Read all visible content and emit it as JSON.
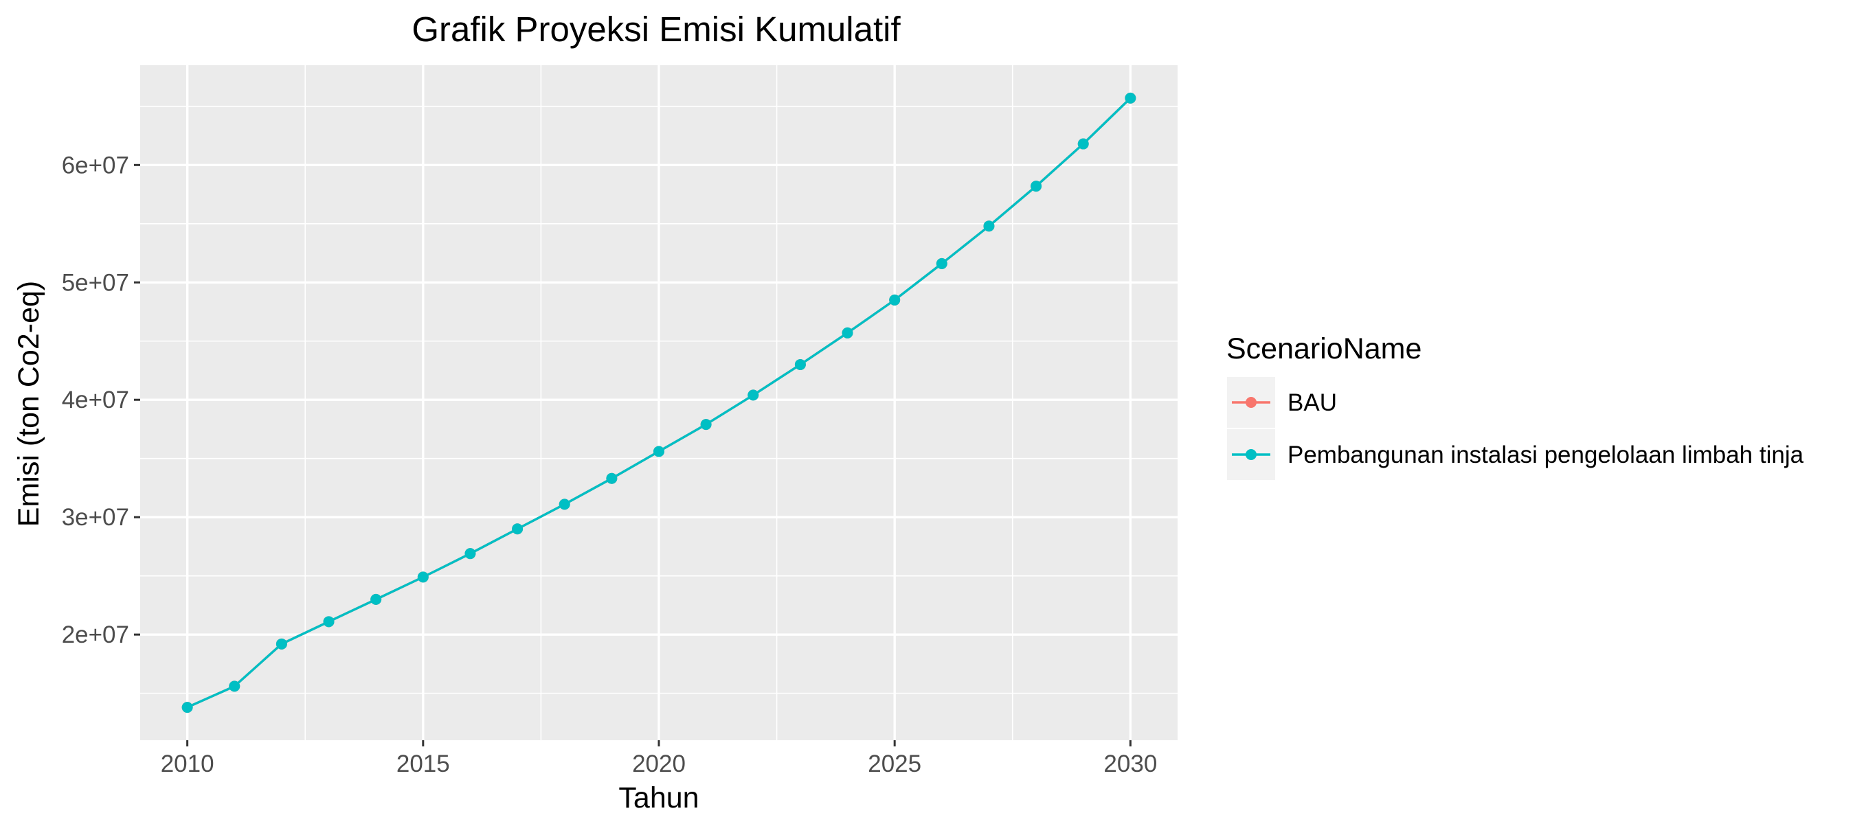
{
  "chart_data": {
    "type": "line",
    "title": "Grafik Proyeksi Emisi Kumulatif",
    "xlabel": "Tahun",
    "ylabel": "Emisi (ton Co2-eq)",
    "x_ticks": [
      "2010",
      "2015",
      "2020",
      "2025",
      "2030"
    ],
    "y_ticks": [
      "2e+07",
      "3e+07",
      "4e+07",
      "5e+07",
      "6e+07"
    ],
    "x_tick_values": [
      2010,
      2015,
      2020,
      2025,
      2030
    ],
    "y_tick_values": [
      20000000,
      30000000,
      40000000,
      50000000,
      60000000
    ],
    "xlim": [
      2009,
      2031
    ],
    "ylim": [
      11000000,
      68500000
    ],
    "grid": true,
    "legend": {
      "title": "ScenarioName",
      "placement": "right"
    },
    "x": [
      2010,
      2011,
      2012,
      2013,
      2014,
      2015,
      2016,
      2017,
      2018,
      2019,
      2020,
      2021,
      2022,
      2023,
      2024,
      2025,
      2026,
      2027,
      2028,
      2029,
      2030
    ],
    "series": [
      {
        "name": "BAU",
        "color": "#F8766D",
        "values": [
          13800000,
          15600000,
          19200000,
          21100000,
          23000000,
          24900000,
          26900000,
          29000000,
          31100000,
          33300000,
          35600000,
          37900000,
          40400000,
          43000000,
          45700000,
          48500000,
          51600000,
          54800000,
          58200000,
          61800000,
          65700000
        ]
      },
      {
        "name": "Pembangunan instalasi pengelolaan limbah tinja",
        "color": "#00BFC4",
        "values": [
          13800000,
          15600000,
          19200000,
          21100000,
          23000000,
          24900000,
          26900000,
          29000000,
          31100000,
          33300000,
          35600000,
          37900000,
          40400000,
          43000000,
          45700000,
          48500000,
          51600000,
          54800000,
          58200000,
          61800000,
          65700000
        ]
      }
    ]
  }
}
